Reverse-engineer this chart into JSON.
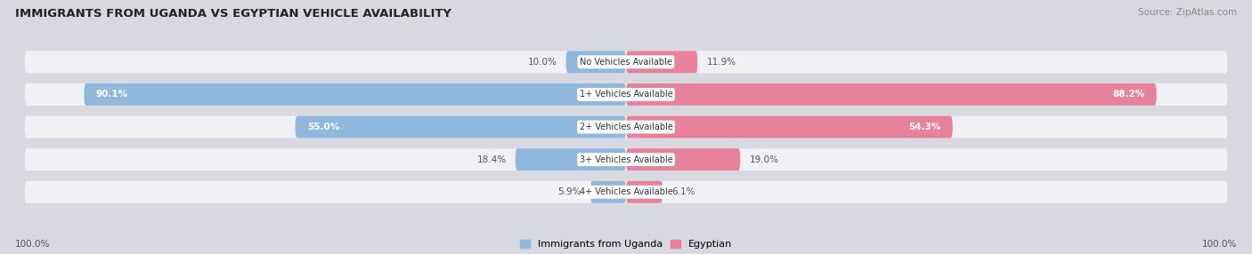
{
  "title": "IMMIGRANTS FROM UGANDA VS EGYPTIAN VEHICLE AVAILABILITY",
  "source": "Source: ZipAtlas.com",
  "categories": [
    "No Vehicles Available",
    "1+ Vehicles Available",
    "2+ Vehicles Available",
    "3+ Vehicles Available",
    "4+ Vehicles Available"
  ],
  "uganda_values": [
    10.0,
    90.1,
    55.0,
    18.4,
    5.9
  ],
  "egyptian_values": [
    11.9,
    88.2,
    54.3,
    19.0,
    6.1
  ],
  "uganda_color": "#90b8dc",
  "egyptian_color": "#e8829a",
  "bg_color": "#d8d8e0",
  "bar_bg_color": "#f0f0f5",
  "label_color": "#555555",
  "title_color": "#222222",
  "legend_uganda": "Immigrants from Uganda",
  "legend_egyptian": "Egyptian",
  "max_val": 100.0,
  "figsize": [
    14.06,
    2.86
  ],
  "dpi": 100
}
